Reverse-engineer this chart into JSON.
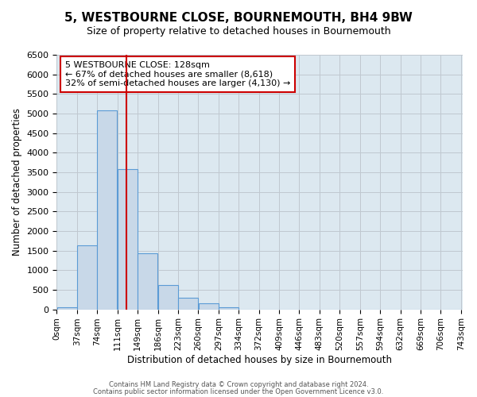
{
  "title": "5, WESTBOURNE CLOSE, BOURNEMOUTH, BH4 9BW",
  "subtitle": "Size of property relative to detached houses in Bournemouth",
  "xlabel": "Distribution of detached houses by size in Bournemouth",
  "ylabel": "Number of detached properties",
  "bin_edges": [
    0,
    37,
    74,
    111,
    148,
    185,
    222,
    259,
    296,
    333,
    370,
    407,
    444,
    481,
    518,
    555,
    592,
    629,
    666,
    703,
    740
  ],
  "bin_labels": [
    "0sqm",
    "37sqm",
    "74sqm",
    "111sqm",
    "149sqm",
    "186sqm",
    "223sqm",
    "260sqm",
    "297sqm",
    "334sqm",
    "372sqm",
    "409sqm",
    "446sqm",
    "483sqm",
    "520sqm",
    "557sqm",
    "594sqm",
    "632sqm",
    "669sqm",
    "706sqm",
    "743sqm"
  ],
  "bar_heights": [
    60,
    1630,
    5080,
    3580,
    1430,
    620,
    300,
    150,
    60,
    0,
    0,
    0,
    0,
    0,
    0,
    0,
    0,
    0,
    0,
    0
  ],
  "bar_color": "#c8d8e8",
  "bar_edge_color": "#5b9bd5",
  "vline_x": 128,
  "vline_color": "#cc0000",
  "ylim": [
    0,
    6500
  ],
  "yticks": [
    0,
    500,
    1000,
    1500,
    2000,
    2500,
    3000,
    3500,
    4000,
    4500,
    5000,
    5500,
    6000,
    6500
  ],
  "annotation_title": "5 WESTBOURNE CLOSE: 128sqm",
  "annotation_line1": "← 67% of detached houses are smaller (8,618)",
  "annotation_line2": "32% of semi-detached houses are larger (4,130) →",
  "annotation_box_color": "#cc0000",
  "footer_line1": "Contains HM Land Registry data © Crown copyright and database right 2024.",
  "footer_line2": "Contains public sector information licensed under the Open Government Licence v3.0.",
  "grid_color": "#c0c8d0",
  "background_color": "#dce8f0",
  "xlim_max": 743
}
